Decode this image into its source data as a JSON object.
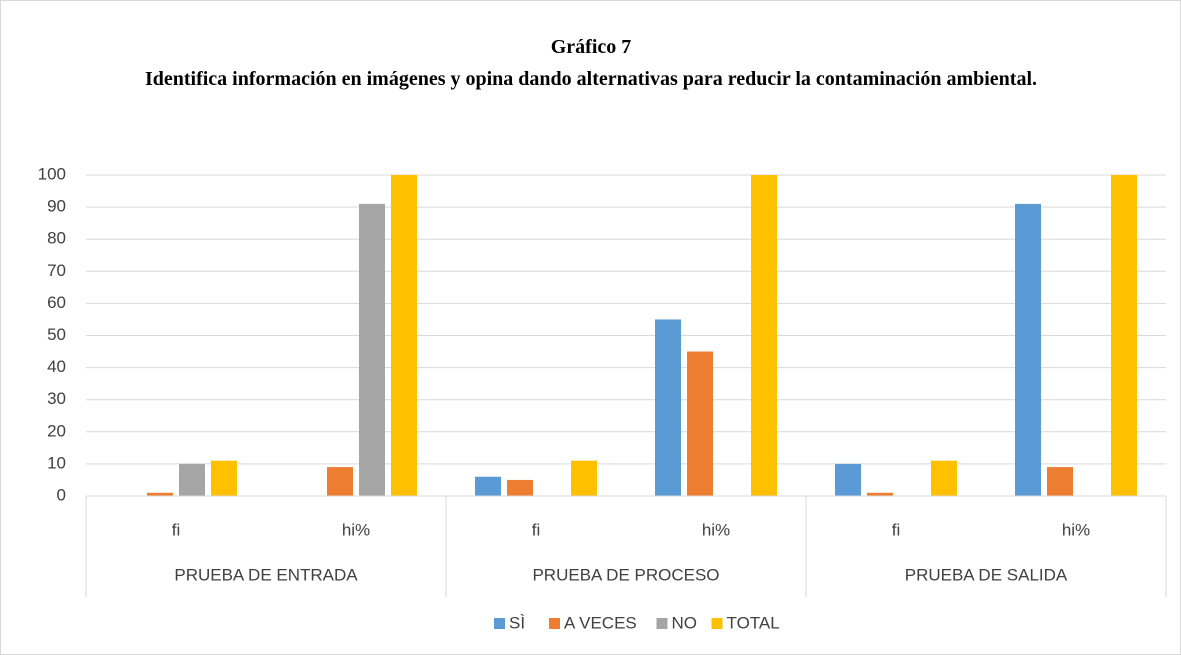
{
  "chart_data": {
    "type": "bar",
    "title": "Gráfico 7",
    "subtitle": "Identifica información en imágenes y opina dando alternativas para reducir la contaminación ambiental.",
    "categories": [
      "fi",
      "hi%",
      "fi",
      "hi%",
      "fi",
      "hi%"
    ],
    "groups": [
      "PRUEBA DE ENTRADA",
      "PRUEBA DE PROCESO",
      "PRUEBA DE SALIDA"
    ],
    "series": [
      {
        "name": "SÌ",
        "color": "#5b9bd5",
        "values": [
          0,
          0,
          6,
          55,
          10,
          91
        ]
      },
      {
        "name": "A VECES",
        "color": "#ed7d31",
        "values": [
          1,
          9,
          5,
          45,
          1,
          9
        ]
      },
      {
        "name": "NO",
        "color": "#a5a5a5",
        "values": [
          10,
          91,
          0,
          0,
          0,
          0
        ]
      },
      {
        "name": "TOTAL",
        "color": "#ffc000",
        "values": [
          11,
          100,
          11,
          100,
          11,
          100
        ]
      }
    ],
    "ylim": [
      0,
      100
    ],
    "yticks": [
      0,
      10,
      20,
      30,
      40,
      50,
      60,
      70,
      80,
      90,
      100
    ],
    "grid": true,
    "legend": "bottom"
  }
}
